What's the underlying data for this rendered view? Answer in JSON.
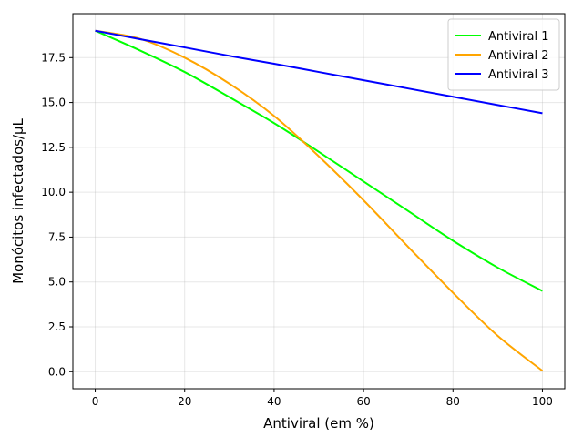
{
  "chart_data": {
    "type": "line",
    "title": "",
    "xlabel": "Antiviral (em %)",
    "ylabel": "Monócitos infectados/µL",
    "xlim": [
      -5,
      105
    ],
    "ylim": [
      -0.95,
      19.95
    ],
    "x_ticks": [
      0,
      20,
      40,
      60,
      80,
      100
    ],
    "x_tick_labels": [
      "0",
      "20",
      "40",
      "60",
      "80",
      "100"
    ],
    "y_ticks": [
      0,
      2.5,
      5,
      7.5,
      10,
      12.5,
      15,
      17.5
    ],
    "y_tick_labels": [
      "0.0",
      "2.5",
      "5.0",
      "7.5",
      "10.0",
      "12.5",
      "15.0",
      "17.5"
    ],
    "grid": true,
    "legend_position": "top-right",
    "x": [
      0,
      10,
      20,
      30,
      40,
      50,
      60,
      70,
      80,
      90,
      100
    ],
    "series": [
      {
        "name": "Antiviral 1",
        "color": "#00ff00",
        "values": [
          19.0,
          17.9,
          16.7,
          15.3,
          13.85,
          12.25,
          10.6,
          8.95,
          7.3,
          5.8,
          4.5
        ]
      },
      {
        "name": "Antiviral 2",
        "color": "#ffa500",
        "values": [
          19.0,
          18.55,
          17.5,
          16.05,
          14.25,
          12.0,
          9.55,
          6.95,
          4.4,
          2.0,
          0.05
        ]
      },
      {
        "name": "Antiviral 3",
        "color": "#0000ff",
        "values": [
          19.0,
          18.53,
          18.07,
          17.6,
          17.16,
          16.7,
          16.24,
          15.78,
          15.32,
          14.86,
          14.4
        ]
      }
    ]
  }
}
